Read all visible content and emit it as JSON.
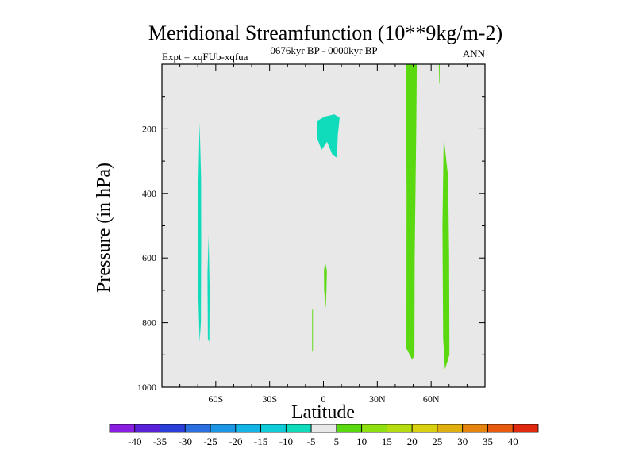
{
  "chart_data": {
    "type": "heatmap",
    "title": "Meridional Streamfunction (10**9kg/m-2)",
    "left_subtitle": "Expt = xqFUb-xqfua",
    "center_subtitle": "0676kyr BP - 0000kyr BP",
    "right_subtitle": "ANN",
    "xlabel": "Latitude",
    "ylabel": "Pressure (in hPa)",
    "xlim": [
      -90,
      90
    ],
    "ylim": [
      1000,
      0
    ],
    "x_ticks": [
      {
        "value": -60,
        "label": "60S"
      },
      {
        "value": -30,
        "label": "30S"
      },
      {
        "value": 0,
        "label": "0"
      },
      {
        "value": 30,
        "label": "30N"
      },
      {
        "value": 60,
        "label": "60N"
      }
    ],
    "y_ticks": [
      {
        "value": 200,
        "label": "200"
      },
      {
        "value": 400,
        "label": "400"
      },
      {
        "value": 600,
        "label": "600"
      },
      {
        "value": 800,
        "label": "800"
      },
      {
        "value": 1000,
        "label": "1000"
      }
    ],
    "background_color": "#e8e8e8",
    "colorbar": {
      "labels": [
        "-40",
        "-35",
        "-30",
        "-25",
        "-20",
        "-15",
        "-10",
        "-5",
        "5",
        "10",
        "15",
        "20",
        "25",
        "30",
        "35",
        "40"
      ],
      "colors": [
        "#8a1ee0",
        "#5a22d8",
        "#2c3ed8",
        "#2a6ee0",
        "#1e96e6",
        "#14b4e6",
        "#10ccd8",
        "#10dcbc",
        "#e8e8e8",
        "#5ad810",
        "#8ee010",
        "#b4dc10",
        "#d8d010",
        "#e0b010",
        "#e68410",
        "#e85a10",
        "#e02a10"
      ]
    },
    "regions": [
      {
        "name": "sh-midlat-band",
        "color": "#10dcbc",
        "points": [
          [
            -69,
            180
          ],
          [
            -68.2,
            350
          ],
          [
            -68.1,
            550
          ],
          [
            -68.3,
            800
          ],
          [
            -69,
            860
          ],
          [
            -69.8,
            700
          ],
          [
            -69.8,
            400
          ]
        ]
      },
      {
        "name": "sh-thin-band",
        "color": "#10dcbc",
        "points": [
          [
            -64,
            530
          ],
          [
            -63.4,
            700
          ],
          [
            -63.6,
            860
          ],
          [
            -64.4,
            850
          ],
          [
            -64.6,
            650
          ]
        ]
      },
      {
        "name": "tropical-upper-cell",
        "color": "#10dcbc",
        "points": [
          [
            -3.5,
            175
          ],
          [
            1,
            162
          ],
          [
            6,
            155
          ],
          [
            9,
            165
          ],
          [
            8,
            220
          ],
          [
            7.5,
            290
          ],
          [
            5,
            280
          ],
          [
            2,
            240
          ],
          [
            -1,
            265
          ],
          [
            -3.5,
            230
          ]
        ]
      },
      {
        "name": "tropical-lower-cell",
        "color": "#5ad810",
        "points": [
          [
            0.9,
            610
          ],
          [
            1.9,
            640
          ],
          [
            1.7,
            700
          ],
          [
            1.3,
            755
          ],
          [
            0.4,
            700
          ],
          [
            0.3,
            640
          ]
        ]
      },
      {
        "name": "deep-thin-line",
        "color": "#5ad810",
        "points": [
          [
            -6.3,
            760
          ],
          [
            -5.9,
            760
          ],
          [
            -5.9,
            890
          ],
          [
            -6.3,
            890
          ]
        ]
      },
      {
        "name": "nh-midlat-band",
        "color": "#5ad810",
        "points": [
          [
            46,
            0
          ],
          [
            52,
            0
          ],
          [
            51.7,
            200
          ],
          [
            50.8,
            600
          ],
          [
            50.7,
            900
          ],
          [
            49.5,
            915
          ],
          [
            46.2,
            880
          ],
          [
            46.3,
            400
          ]
        ]
      },
      {
        "name": "nh-top-spike",
        "color": "#5ad810",
        "points": [
          [
            64.3,
            0
          ],
          [
            64.8,
            0
          ],
          [
            64.6,
            60
          ],
          [
            64.4,
            60
          ]
        ]
      },
      {
        "name": "nh-highlat-band",
        "color": "#5ad810",
        "points": [
          [
            67,
            225
          ],
          [
            69.5,
            350
          ],
          [
            70,
            600
          ],
          [
            70.2,
            900
          ],
          [
            67.7,
            945
          ],
          [
            66.7,
            850
          ],
          [
            66.3,
            500
          ]
        ]
      }
    ]
  }
}
